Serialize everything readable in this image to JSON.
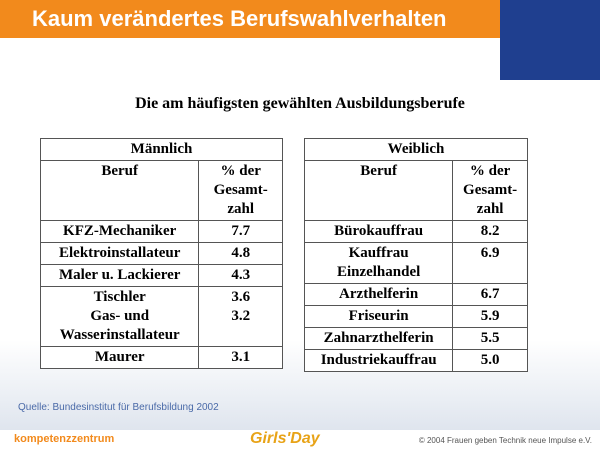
{
  "header": {
    "title": "Kaum verändertes Berufswahlverhalten"
  },
  "subtitle": "Die am häufigsten gewählten Ausbildungsberufe",
  "tables": [
    {
      "heading": "Männlich",
      "columns": [
        "Beruf",
        "% der Gesamt-zahl"
      ],
      "rows": [
        [
          [
            "KFZ-Mechaniker",
            "7.7"
          ]
        ],
        [
          [
            "Elektroinstallateur",
            "4.8"
          ]
        ],
        [
          [
            "Maler u. Lackierer",
            "4.3"
          ]
        ],
        [
          [
            "Tischler",
            "3.6"
          ],
          [
            "Gas- und Wasserinstallateur",
            "3.2"
          ]
        ],
        [
          [
            "Maurer",
            "3.1"
          ]
        ]
      ]
    },
    {
      "heading": "Weiblich",
      "columns": [
        "Beruf",
        "% der Gesamt-zahl"
      ],
      "rows": [
        [
          [
            "Bürokauffrau",
            "8.2"
          ]
        ],
        [
          [
            "Kauffrau Einzelhandel",
            "6.9"
          ]
        ],
        [
          [
            "Arzthelferin",
            "6.7"
          ]
        ],
        [
          [
            "Friseurin",
            "5.9"
          ]
        ],
        [
          [
            "Zahnarzthelferin",
            "5.5"
          ]
        ],
        [
          [
            "Industriekauffrau",
            "5.0"
          ]
        ]
      ]
    }
  ],
  "source": "Quelle: Bundesinstitut für Berufsbildung 2002",
  "footer": {
    "logo_left": "kompetenzzentrum",
    "logo_center": "Girls'Day",
    "copyright": "© 2004 Frauen geben Technik neue Impulse e.V."
  }
}
